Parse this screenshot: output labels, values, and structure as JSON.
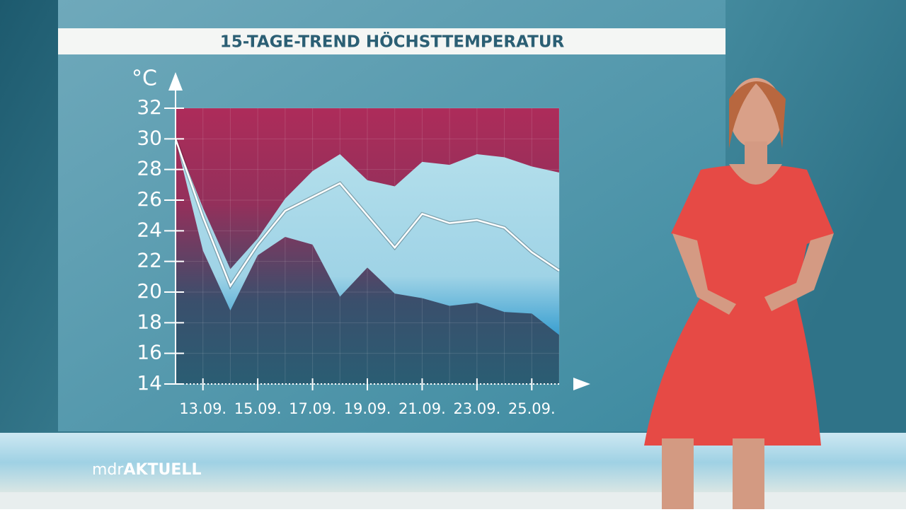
{
  "chart_data": {
    "type": "band",
    "title": "15-TAGE-TREND HÖCHSTTEMPERATUR",
    "y_label": "°C",
    "categories": [
      null,
      "13.09.",
      null,
      "15.09.",
      null,
      "17.09.",
      null,
      "19.09.",
      null,
      "21.09.",
      null,
      "23.09.",
      null,
      "25.09.",
      null
    ],
    "series": [
      {
        "color": "#a9d9e8",
        "values": [
          30,
          25.5,
          21.5,
          23.5,
          26.1,
          27.9,
          29,
          27.3,
          26.9,
          28.5,
          28.3,
          29,
          28.8,
          28.2,
          27.8
        ]
      },
      {
        "color": "#a9d9e8",
        "values": [
          30,
          22.7,
          18.8,
          22.4,
          23.6,
          23.1,
          19.7,
          21.6,
          19.9,
          19.6,
          19.1,
          19.3,
          18.7,
          18.6,
          17.2
        ]
      },
      {
        "color": "#ffffff",
        "values": [
          30,
          24.9,
          20.4,
          23.1,
          25.3,
          26.2,
          27.1,
          25,
          22.9,
          25.1,
          24.5,
          24.7,
          24.2,
          22.6,
          21.4
        ]
      }
    ],
    "ylim": [
      14,
      32
    ],
    "yticks": [
      14,
      16,
      18,
      20,
      22,
      24,
      26,
      28,
      30,
      32
    ],
    "grid": true
  },
  "branding": {
    "prefix": "mdr",
    "name": "AKTUELL"
  }
}
